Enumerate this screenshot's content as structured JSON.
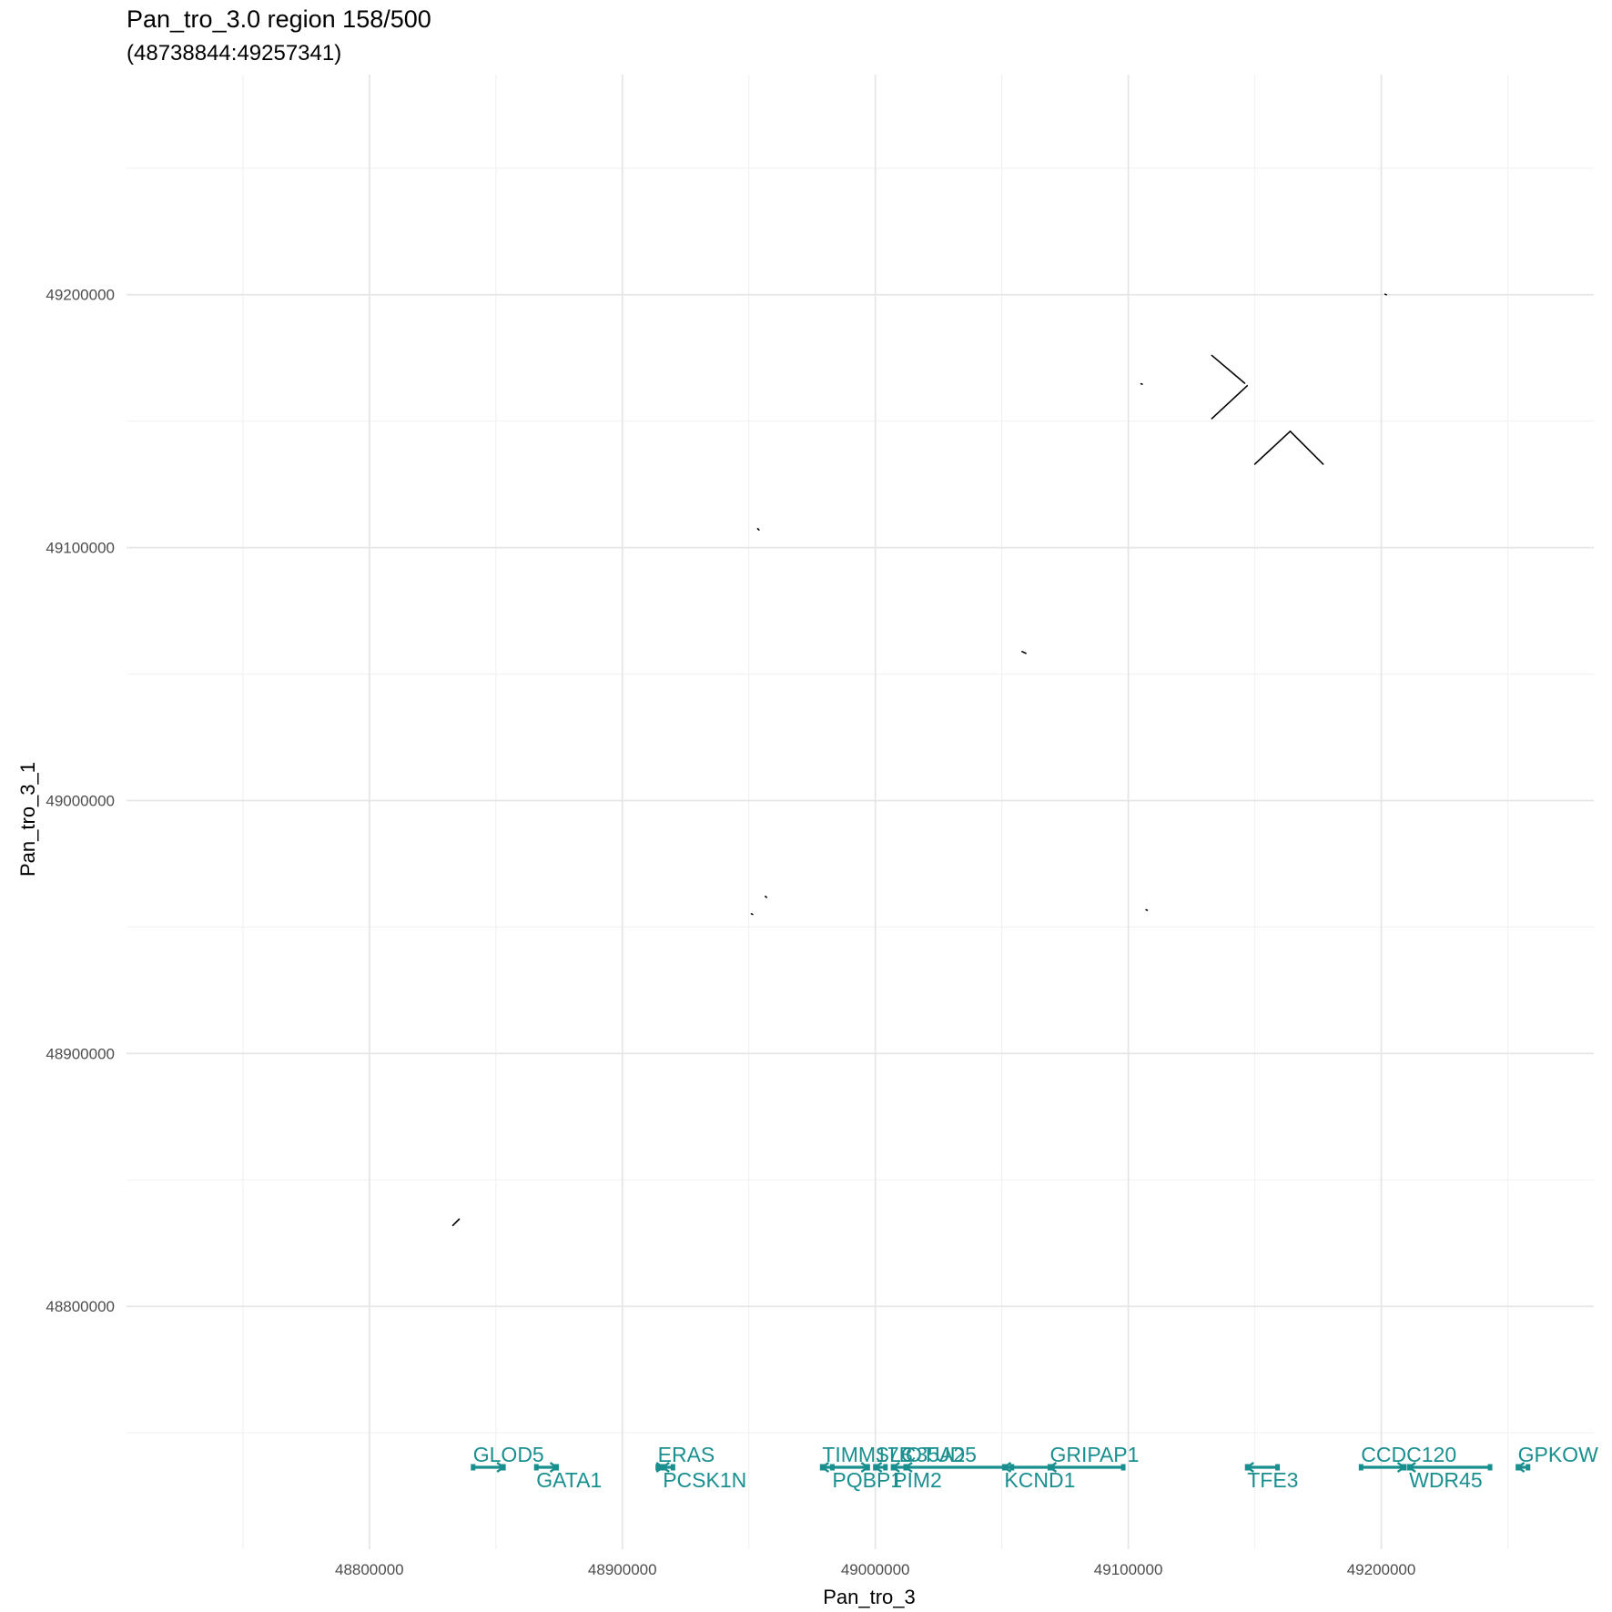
{
  "chart_data": {
    "type": "scatter",
    "title": "Pan_tro_3.0 region 158/500",
    "subtitle": "(48738844:49257341)",
    "xlabel": "Pan_tro_3",
    "ylabel": "Pan_tro_3_1",
    "xlim": [
      48704000,
      49284000
    ],
    "ylim": [
      48704000,
      49287000
    ],
    "x_ticks": [
      48800000,
      48900000,
      49000000,
      49100000,
      49200000
    ],
    "x_tick_labels": [
      "48800000",
      "48900000",
      "49000000",
      "49100000",
      "49200000"
    ],
    "y_ticks": [
      48800000,
      48900000,
      49000000,
      49100000,
      49200000
    ],
    "y_tick_labels": [
      "48800000",
      "48900000",
      "49000000",
      "49100000",
      "49200000"
    ],
    "grid": true,
    "colors": {
      "segment": "#000000",
      "gene": "#1a8f8f",
      "grid_major": "#e6e6e6",
      "grid_minor": "#f2f2f2"
    },
    "segments": [
      {
        "x": [
          48833000,
          48835500
        ],
        "y": [
          48832000,
          48834500
        ]
      },
      {
        "x": [
          48951000,
          48951500
        ],
        "y": [
          48955200,
          48955000
        ]
      },
      {
        "x": [
          48956500,
          48957000
        ],
        "y": [
          48962100,
          48961700
        ]
      },
      {
        "x": [
          48953500,
          48954000
        ],
        "y": [
          49107500,
          49107000
        ]
      },
      {
        "x": [
          49058000,
          49059500
        ],
        "y": [
          49058900,
          49058200
        ]
      },
      {
        "x": [
          49105000,
          49105500
        ],
        "y": [
          49164800,
          49164600
        ]
      },
      {
        "x": [
          49107000,
          49107500
        ],
        "y": [
          48956800,
          48956600
        ]
      },
      {
        "x": [
          49201500,
          49202000
        ],
        "y": [
          49200200,
          49200000
        ]
      },
      {
        "x": [
          49133000,
          49146000
        ],
        "y": [
          49176000,
          49165000
        ]
      },
      {
        "x": [
          49133000,
          49147000
        ],
        "y": [
          49151000,
          49164000
        ]
      },
      {
        "x": [
          49150000,
          49164000
        ],
        "y": [
          49133000,
          49146000
        ]
      },
      {
        "x": [
          49164000,
          49177000
        ],
        "y": [
          49146000,
          49133000
        ]
      }
    ],
    "genes": [
      {
        "name": "GLOD5",
        "start": 48841000,
        "end": 48853000,
        "strand": "+",
        "row": 0
      },
      {
        "name": "GATA1",
        "start": 48866000,
        "end": 48874000,
        "strand": "+",
        "row": 1
      },
      {
        "name": "ERAS",
        "start": 48914000,
        "end": 48916000,
        "strand": "+",
        "row": 0
      },
      {
        "name": "PCSK1N",
        "start": 48916000,
        "end": 48920000,
        "strand": "-",
        "row": 1
      },
      {
        "name": "TIMM17B",
        "start": 48979000,
        "end": 48983000,
        "strand": "-",
        "row": 0
      },
      {
        "name": "PQBP1",
        "start": 48983000,
        "end": 48997000,
        "strand": "+",
        "row": 1
      },
      {
        "name": "SLC35A2",
        "start": 49000000,
        "end": 49004000,
        "strand": "-",
        "row": 0
      },
      {
        "name": "PIM2",
        "start": 49007000,
        "end": 49012000,
        "strand": "-",
        "row": 1
      },
      {
        "name": "OTUD5",
        "start": 49012000,
        "end": 49054000,
        "strand": "-",
        "row": 0
      },
      {
        "name": "KCND1",
        "start": 49051000,
        "end": 49070000,
        "strand": "-",
        "row": 1
      },
      {
        "name": "GRIPAP1",
        "start": 49069000,
        "end": 49098000,
        "strand": "-",
        "row": 0
      },
      {
        "name": "TFE3",
        "start": 49147000,
        "end": 49159000,
        "strand": "-",
        "row": 1
      },
      {
        "name": "CCDC120",
        "start": 49192000,
        "end": 49209000,
        "strand": "+",
        "row": 0
      },
      {
        "name": "WDR45",
        "start": 49211000,
        "end": 49243000,
        "strand": "-",
        "row": 1
      },
      {
        "name": "GPKOW",
        "start": 49254000,
        "end": 49258000,
        "strand": "-",
        "row": 0
      }
    ]
  }
}
